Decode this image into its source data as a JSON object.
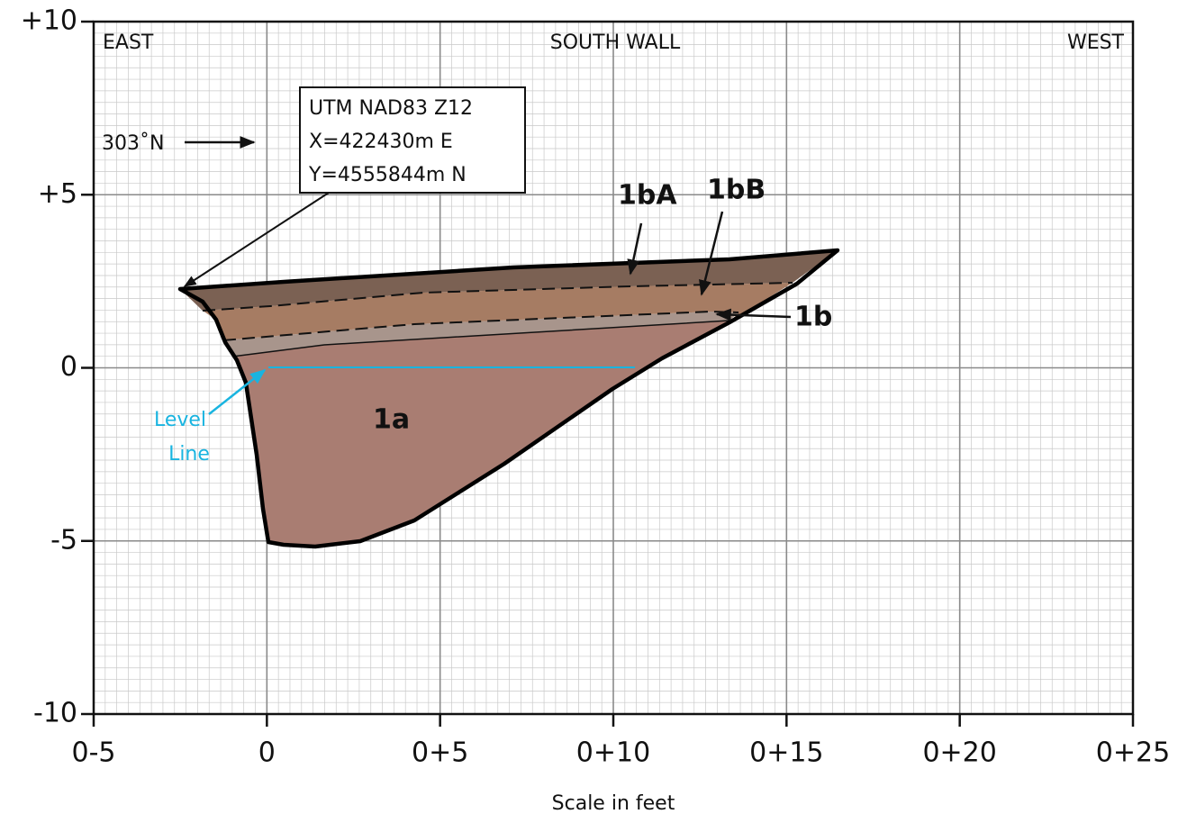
{
  "header": {
    "left": "EAST",
    "center": "SOUTH WALL",
    "right": "WEST"
  },
  "location": {
    "lines": [
      "UTM NAD83 Z12",
      "X=422430m E",
      "Y=4555844m N"
    ]
  },
  "bearing": "303˚N",
  "units": [
    {
      "label": "1bA"
    },
    {
      "label": "1bB"
    },
    {
      "label": "1b"
    },
    {
      "label": "1a"
    }
  ],
  "level_line": [
    "Level",
    "Line"
  ],
  "axes": {
    "x_title": "Scale in feet",
    "xlim": [
      -5,
      25
    ],
    "xticks": [
      {
        "value": -5,
        "label": "0-5"
      },
      {
        "value": 0,
        "label": "0"
      },
      {
        "value": 5,
        "label": "0+5"
      },
      {
        "value": 10,
        "label": "0+10"
      },
      {
        "value": 15,
        "label": "0+15"
      },
      {
        "value": 20,
        "label": "0+20"
      },
      {
        "value": 25,
        "label": "0+25"
      }
    ],
    "ylim": [
      -10,
      10
    ],
    "yticks": [
      {
        "value": 10,
        "label": "+10"
      },
      {
        "value": 5,
        "label": "+5"
      },
      0,
      -5,
      -10
    ]
  }
}
